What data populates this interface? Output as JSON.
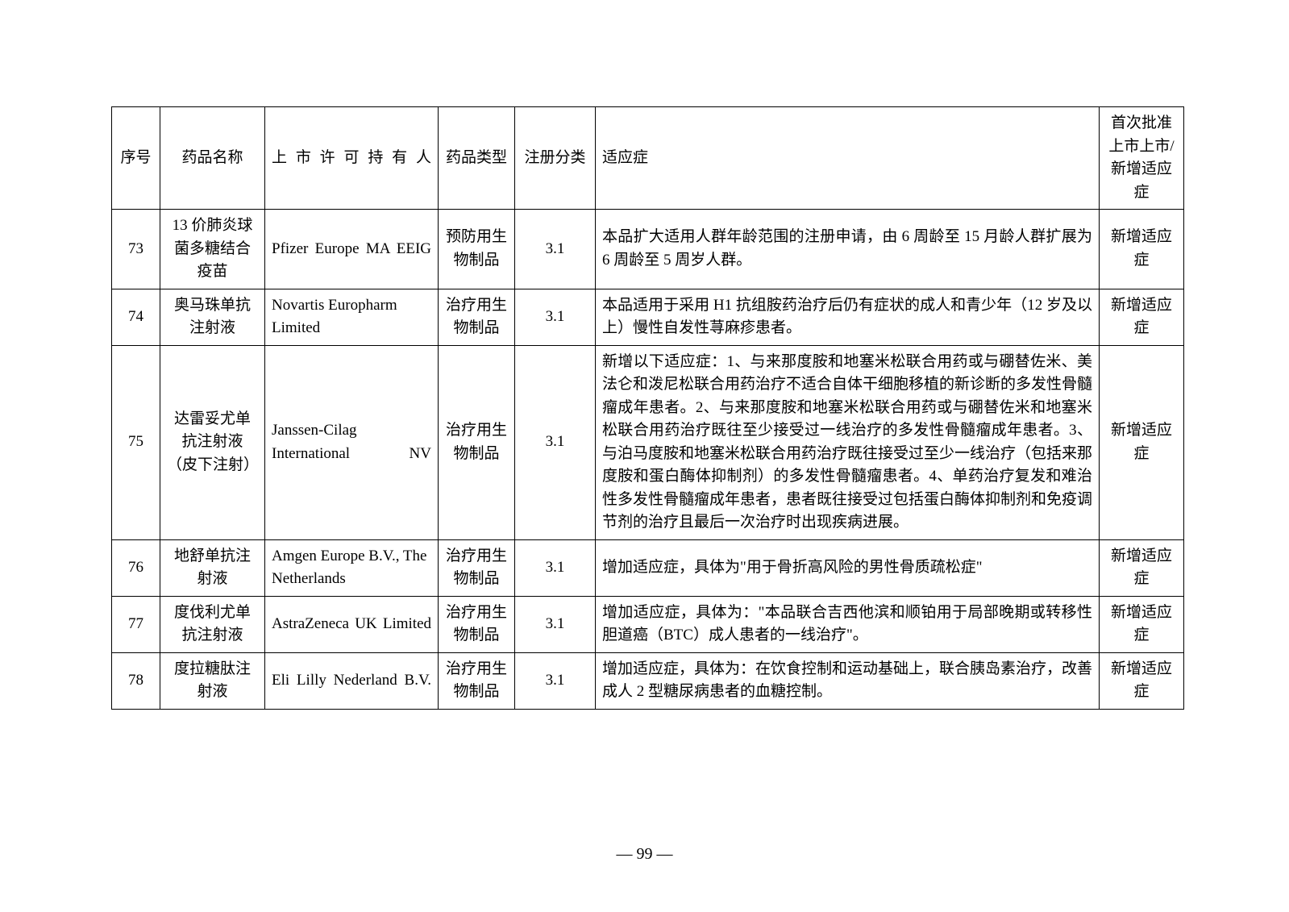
{
  "table": {
    "headers": {
      "seq": "序号",
      "name": "药品名称",
      "mah": "上市许可持有人",
      "type": "药品类型",
      "regclass": "注册分类",
      "indication": "适应症",
      "approval": "首次批准上市上市/新增适应症"
    },
    "rows": [
      {
        "seq": "73",
        "name": "13 价肺炎球菌多糖结合疫苗",
        "mah": "Pfizer Europe MA EEIG",
        "type": "预防用生物制品",
        "regclass": "3.1",
        "indication": "本品扩大适用人群年龄范围的注册申请，由 6 周龄至 15 月龄人群扩展为 6 周龄至 5 周岁人群。",
        "approval": "新增适应症"
      },
      {
        "seq": "74",
        "name": "奥马珠单抗注射液",
        "mah": "Novartis Europharm Limited",
        "type": "治疗用生物制品",
        "regclass": "3.1",
        "indication": "本品适用于采用 H1 抗组胺药治疗后仍有症状的成人和青少年（12 岁及以上）慢性自发性荨麻疹患者。",
        "approval": "新增适应症"
      },
      {
        "seq": "75",
        "name": "达雷妥尤单抗注射液（皮下注射）",
        "mah": "Janssen-Cilag International NV",
        "type": "治疗用生物制品",
        "regclass": "3.1",
        "indication": "新增以下适应症：1、与来那度胺和地塞米松联合用药或与硼替佐米、美法仑和泼尼松联合用药治疗不适合自体干细胞移植的新诊断的多发性骨髓瘤成年患者。2、与来那度胺和地塞米松联合用药或与硼替佐米和地塞米松联合用药治疗既往至少接受过一线治疗的多发性骨髓瘤成年患者。3、与泊马度胺和地塞米松联合用药治疗既往接受过至少一线治疗（包括来那度胺和蛋白酶体抑制剂）的多发性骨髓瘤患者。4、单药治疗复发和难治性多发性骨髓瘤成年患者，患者既往接受过包括蛋白酶体抑制剂和免疫调节剂的治疗且最后一次治疗时出现疾病进展。",
        "approval": "新增适应症"
      },
      {
        "seq": "76",
        "name": "地舒单抗注射液",
        "mah": "Amgen Europe B.V., The Netherlands",
        "type": "治疗用生物制品",
        "regclass": "3.1",
        "indication": "增加适应症，具体为\"用于骨折高风险的男性骨质疏松症\"",
        "approval": "新增适应症"
      },
      {
        "seq": "77",
        "name": "度伐利尤单抗注射液",
        "mah": "AstraZeneca UK Limited",
        "type": "治疗用生物制品",
        "regclass": "3.1",
        "indication": "增加适应症，具体为：\"本品联合吉西他滨和顺铂用于局部晚期或转移性胆道癌（BTC）成人患者的一线治疗\"。",
        "approval": "新增适应症"
      },
      {
        "seq": "78",
        "name": "度拉糖肽注射液",
        "mah": "Eli Lilly Nederland B.V.",
        "type": "治疗用生物制品",
        "regclass": "3.1",
        "indication": "增加适应症，具体为：在饮食控制和运动基础上，联合胰岛素治疗，改善成人 2 型糖尿病患者的血糖控制。",
        "approval": "新增适应症"
      }
    ]
  },
  "pageNumber": "— 99 —"
}
